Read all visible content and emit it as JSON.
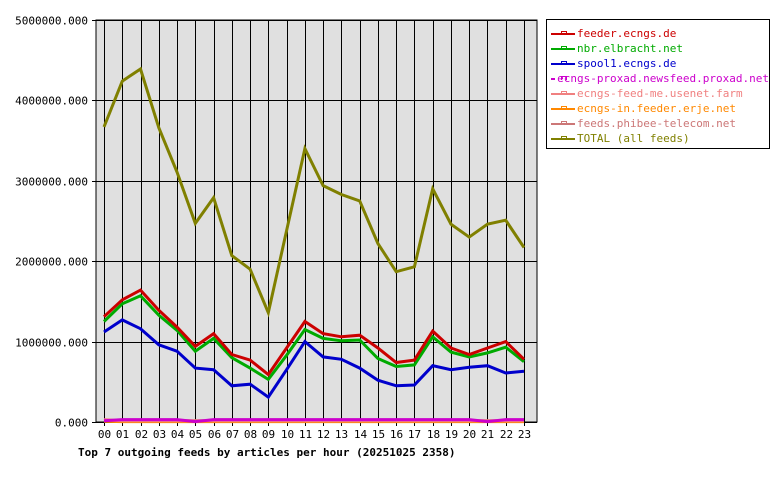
{
  "chart_data": {
    "type": "line",
    "title": "Top 7 outgoing feeds by articles per hour (20251025 2358)",
    "xlabel": "",
    "ylabel": "",
    "ylim": [
      0,
      5000000
    ],
    "yticks": [
      "0.000",
      "1000000.000",
      "2000000.000",
      "3000000.000",
      "4000000.000",
      "5000000.000"
    ],
    "grid": true,
    "legend_position": "right",
    "categories": [
      "00",
      "01",
      "02",
      "03",
      "04",
      "05",
      "06",
      "07",
      "08",
      "09",
      "10",
      "11",
      "12",
      "13",
      "14",
      "15",
      "16",
      "17",
      "18",
      "19",
      "20",
      "21",
      "22",
      "23"
    ],
    "series": [
      {
        "name": "feeder.ecngs.de",
        "color": "#cc0000",
        "values": [
          1310000,
          1520000,
          1640000,
          1390000,
          1180000,
          940000,
          1100000,
          840000,
          770000,
          590000,
          920000,
          1250000,
          1100000,
          1060000,
          1080000,
          920000,
          740000,
          770000,
          1130000,
          920000,
          840000,
          920000,
          1000000,
          780000
        ]
      },
      {
        "name": "nbr.elbracht.net",
        "color": "#00aa00",
        "values": [
          1250000,
          1470000,
          1570000,
          1330000,
          1140000,
          880000,
          1040000,
          800000,
          670000,
          530000,
          830000,
          1150000,
          1040000,
          1010000,
          1020000,
          790000,
          690000,
          710000,
          1060000,
          870000,
          810000,
          860000,
          930000,
          750000
        ]
      },
      {
        "name": "spool1.ecngs.de",
        "color": "#0000cc",
        "values": [
          1120000,
          1270000,
          1160000,
          960000,
          880000,
          670000,
          650000,
          450000,
          470000,
          310000,
          650000,
          1000000,
          810000,
          780000,
          670000,
          520000,
          450000,
          460000,
          700000,
          650000,
          680000,
          700000,
          610000,
          630000
        ]
      },
      {
        "name": "ecngs-proxad.newsfeed.proxad.net",
        "color": "#cc00cc",
        "values": [
          15000,
          30000,
          30000,
          30000,
          30000,
          5000,
          30000,
          30000,
          30000,
          30000,
          30000,
          30000,
          30000,
          30000,
          30000,
          30000,
          30000,
          30000,
          30000,
          30000,
          30000,
          5000,
          30000,
          30000
        ]
      },
      {
        "name": "ecngs-feed-me.usenet.farm",
        "color": "#f08080",
        "values": [
          30000,
          15000,
          15000,
          15000,
          15000,
          15000,
          15000,
          15000,
          15000,
          15000,
          15000,
          15000,
          15000,
          15000,
          15000,
          15000,
          15000,
          15000,
          15000,
          15000,
          15000,
          15000,
          15000,
          15000
        ]
      },
      {
        "name": "ecngs-in.feeder.erje.net",
        "color": "#ff8800",
        "values": [
          10000,
          5000,
          5000,
          5000,
          5000,
          5000,
          5000,
          5000,
          5000,
          5000,
          5000,
          5000,
          5000,
          5000,
          5000,
          5000,
          5000,
          5000,
          5000,
          5000,
          5000,
          5000,
          5000,
          5000
        ]
      },
      {
        "name": "feeds.phibee-telecom.net",
        "color": "#cc7777",
        "values": [
          15000,
          15000,
          15000,
          15000,
          15000,
          15000,
          15000,
          15000,
          15000,
          15000,
          15000,
          15000,
          15000,
          15000,
          15000,
          15000,
          15000,
          15000,
          15000,
          15000,
          15000,
          15000,
          15000,
          15000
        ]
      },
      {
        "name": "TOTAL (all feeds)",
        "color": "#808000",
        "values": [
          3670000,
          4240000,
          4390000,
          3660000,
          3110000,
          2470000,
          2790000,
          2070000,
          1900000,
          1360000,
          2380000,
          3400000,
          2940000,
          2830000,
          2750000,
          2220000,
          1870000,
          1930000,
          2900000,
          2460000,
          2300000,
          2460000,
          2510000,
          2170000
        ]
      }
    ]
  },
  "legend": {
    "items": [
      {
        "label": "feeder.ecngs.de",
        "color": "#cc0000"
      },
      {
        "label": "nbr.elbracht.net",
        "color": "#00aa00"
      },
      {
        "label": "spool1.ecngs.de",
        "color": "#0000cc"
      },
      {
        "label": "ecngs-proxad.newsfeed.proxad.net",
        "color": "#cc00cc"
      },
      {
        "label": "ecngs-feed-me.usenet.farm",
        "color": "#f08080"
      },
      {
        "label": "ecngs-in.feeder.erje.net",
        "color": "#ff8800"
      },
      {
        "label": "feeds.phibee-telecom.net",
        "color": "#cc7777"
      },
      {
        "label": "TOTAL (all feeds)",
        "color": "#808000"
      }
    ]
  },
  "colors": {
    "plot_background": "#e0e0e0",
    "grid": "#000000"
  }
}
